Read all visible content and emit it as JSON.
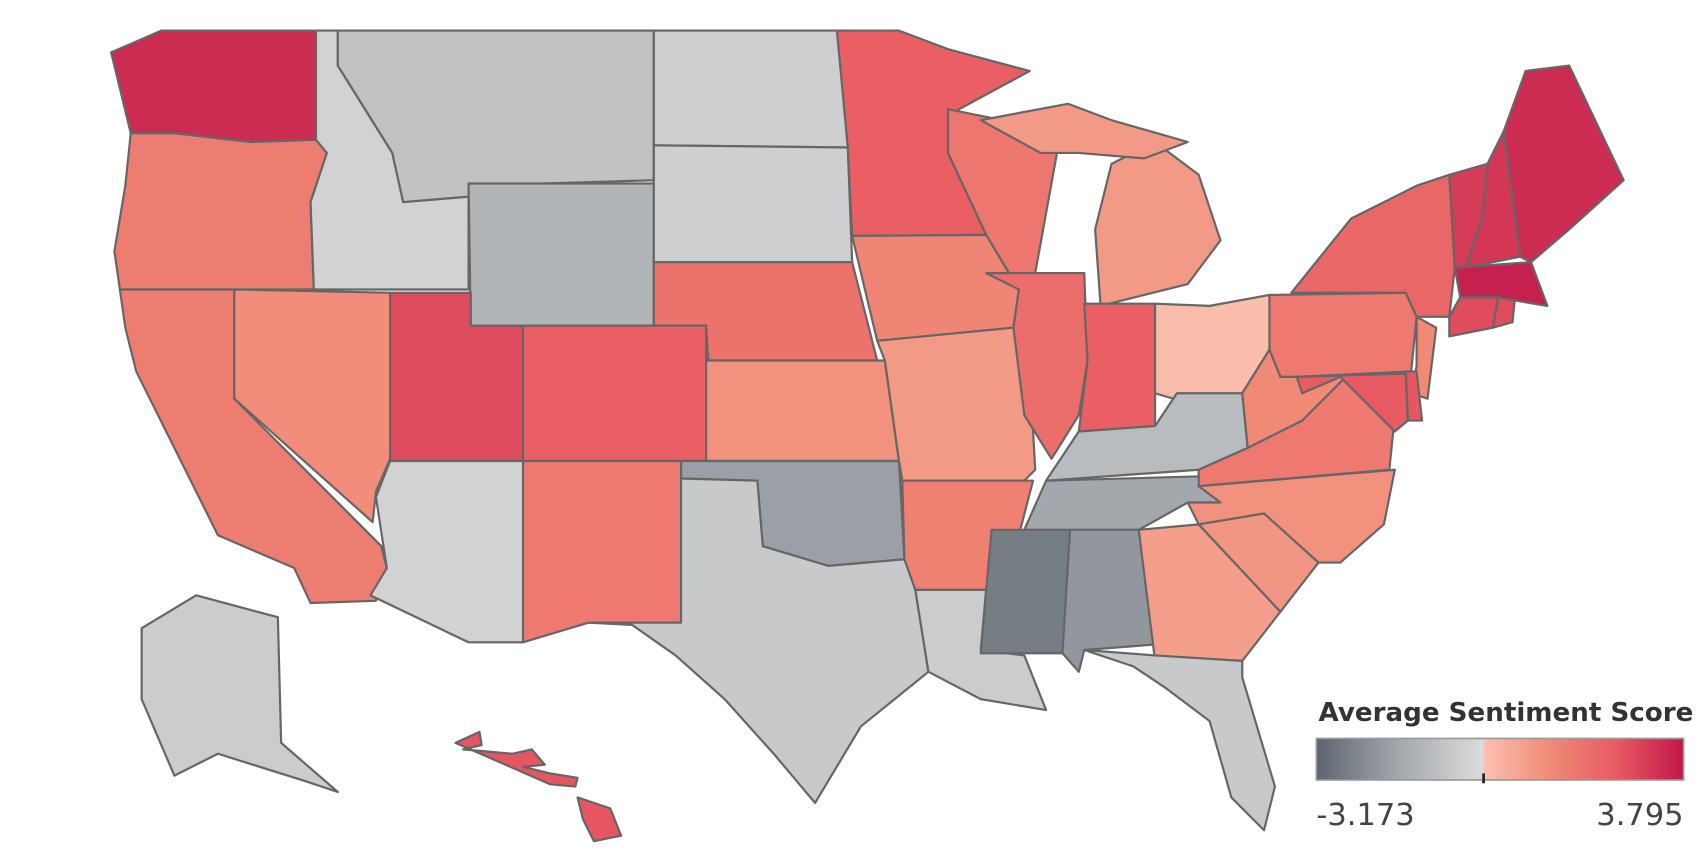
{
  "chart_data": {
    "type": "choropleth",
    "legend_title": "Average Sentiment Score",
    "color_min": -3.173,
    "color_max": 3.795,
    "negative_colors": [
      "#5c646e",
      "#a4a9ad",
      "#dcdcdc"
    ],
    "positive_colors": [
      "#fbc0b0",
      "#f08a77",
      "#e85a62",
      "#c0174a"
    ],
    "values": [
      3.4,
      1.6,
      1.6,
      1.2,
      -0.3,
      -0.8,
      -1.2,
      2.8,
      2.4,
      -0.3,
      1.7,
      -0.4,
      -0.4,
      1.9,
      1.1,
      -1.8,
      -0.6,
      2.4,
      1.4,
      0.9,
      1.5,
      -0.5,
      1.8,
      2.0,
      0.9,
      0.9,
      2.4,
      0.1,
      -1.0,
      -1.6,
      -2.6,
      -2.0,
      0.8,
      -0.6,
      1.0,
      1.1,
      1.7,
      1.3,
      1.7,
      2.2,
      3.1,
      3.2,
      3.4,
      3.6,
      2.8,
      2.8,
      1.3,
      2.6,
      2.5,
      -0.5,
      2.6,
      2.6
    ]
  }
}
